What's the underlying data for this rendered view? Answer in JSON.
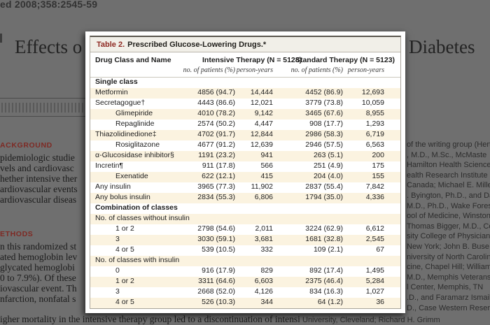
{
  "page": {
    "citation": "ed 2008;358:2545-59",
    "title_left": "Effects o",
    "title_right": "Diabetes",
    "abstract": {
      "background_label": "ACKGROUND",
      "background_lines": [
        "pidemiologic studie",
        "vels and cardiovasc",
        "hether intensive ther",
        "ardiovascular events",
        "ardiovascular diseas"
      ],
      "methods_label": "ETHODS",
      "methods_lines": [
        "n this randomized st",
        "ated hemoglobin lev",
        "glycated hemoglobi",
        "0 to 7.9%). Of these",
        "iovascular event. Th",
        "nfarction, nonfatal s"
      ],
      "bottom_line": "igher mortality in the intensive therapy group led to a discontinuation of intensive"
    },
    "affiliations": {
      "lines": [
        "of the writing group (Hert",
        ", M.D., M.Sc., McMaste",
        "Hamilton Health Sciences",
        "ealth Research Institute",
        "Canada; Michael E. Miller",
        ". Byington, Ph.D., and Da",
        "M.D., Ph.D., Wake Fores",
        "ool of Medicine, Winston",
        "Thomas Bigger, M.D., Co",
        "sity College of Physician",
        "New York; John B. Buse",
        "niversity of North Carolina",
        "cine, Chapel Hill; William",
        "M.D., Memphis Veterans",
        "l Center, Memphis, TN",
        ".D., and Faramarz Ismail",
        "D., Case Western Reserve"
      ],
      "last_line": "University, Cleveland; Richard H. Grimm"
    }
  },
  "table": {
    "title_prefix": "Table 2.",
    "title_rest": "Prescribed Glucose-Lowering Drugs.*",
    "col_name_header": "Drug Class and Name",
    "group1": "Intensive Therapy (N = 5128)",
    "group2": "Standard Therapy (N = 5123)",
    "sub_patients": "no. of patients (%)",
    "sub_years": "person-years",
    "rows": [
      {
        "label": "Single class",
        "type": "section",
        "indent": false,
        "values": [
          "",
          "",
          "",
          ""
        ]
      },
      {
        "label": "Metformin",
        "type": "data",
        "indent": false,
        "values": [
          "4856 (94.7)",
          "14,444",
          "4452 (86.9)",
          "12,693"
        ]
      },
      {
        "label": "Secretagogue†",
        "type": "data",
        "indent": false,
        "values": [
          "4443 (86.6)",
          "12,021",
          "3779 (73.8)",
          "10,059"
        ]
      },
      {
        "label": "Glimepiride",
        "type": "data",
        "indent": true,
        "values": [
          "4010 (78.2)",
          "9,142",
          "3465 (67.6)",
          "8,955"
        ]
      },
      {
        "label": "Repaglinide",
        "type": "data",
        "indent": true,
        "values": [
          "2574 (50.2)",
          "4,447",
          "908 (17.7)",
          "1,293"
        ]
      },
      {
        "label": "Thiazolidinedione‡",
        "type": "data",
        "indent": false,
        "values": [
          "4702 (91.7)",
          "12,844",
          "2986 (58.3)",
          "6,719"
        ]
      },
      {
        "label": "Rosiglitazone",
        "type": "data",
        "indent": true,
        "values": [
          "4677 (91.2)",
          "12,639",
          "2946 (57.5)",
          "6,563"
        ]
      },
      {
        "label": "α-Glucosidase inhibitor§",
        "type": "data",
        "indent": false,
        "values": [
          "1191 (23.2)",
          "941",
          "263 (5.1)",
          "200"
        ]
      },
      {
        "label": "Incretin¶",
        "type": "data",
        "indent": false,
        "values": [
          "911 (17.8)",
          "566",
          "251 (4.9)",
          "175"
        ]
      },
      {
        "label": "Exenatide",
        "type": "data",
        "indent": true,
        "values": [
          "622 (12.1)",
          "415",
          "204 (4.0)",
          "155"
        ]
      },
      {
        "label": "Any insulin",
        "type": "data",
        "indent": false,
        "values": [
          "3965 (77.3)",
          "11,902",
          "2837 (55.4)",
          "7,842"
        ]
      },
      {
        "label": "Any bolus insulin",
        "type": "data",
        "indent": false,
        "values": [
          "2834 (55.3)",
          "6,806",
          "1794 (35.0)",
          "4,336"
        ]
      },
      {
        "label": "Combination of classes",
        "type": "section",
        "indent": false,
        "values": [
          "",
          "",
          "",
          ""
        ]
      },
      {
        "label": "No. of classes without insulin",
        "type": "subsection",
        "indent": false,
        "values": [
          "",
          "",
          "",
          ""
        ]
      },
      {
        "label": "1 or 2",
        "type": "data",
        "indent": true,
        "values": [
          "2798 (54.6)",
          "2,011",
          "3224 (62.9)",
          "6,612"
        ]
      },
      {
        "label": "3",
        "type": "data",
        "indent": true,
        "values": [
          "3030 (59.1)",
          "3,681",
          "1681 (32.8)",
          "2,545"
        ]
      },
      {
        "label": "4 or 5",
        "type": "data",
        "indent": true,
        "values": [
          "539 (10.5)",
          "332",
          "109 (2.1)",
          "67"
        ]
      },
      {
        "label": "No. of classes with insulin",
        "type": "subsection",
        "indent": false,
        "values": [
          "",
          "",
          "",
          ""
        ]
      },
      {
        "label": "0",
        "type": "data",
        "indent": true,
        "values": [
          "916 (17.9)",
          "829",
          "892 (17.4)",
          "1,495"
        ]
      },
      {
        "label": "1 or 2",
        "type": "data",
        "indent": true,
        "values": [
          "3311 (64.6)",
          "6,603",
          "2375 (46.4)",
          "5,284"
        ]
      },
      {
        "label": "3",
        "type": "data",
        "indent": true,
        "values": [
          "2668 (52.0)",
          "4,126",
          "834 (16.3)",
          "1,027"
        ]
      },
      {
        "label": "4 or 5",
        "type": "data",
        "indent": true,
        "values": [
          "526 (10.3)",
          "344",
          "64 (1.2)",
          "36"
        ]
      }
    ]
  },
  "colors": {
    "accent_red": "#8e2a23",
    "row_stripe": "#fbf3e0",
    "overlay_gray": "#6f6f6f",
    "table_title_bar": "#f1efe8"
  }
}
